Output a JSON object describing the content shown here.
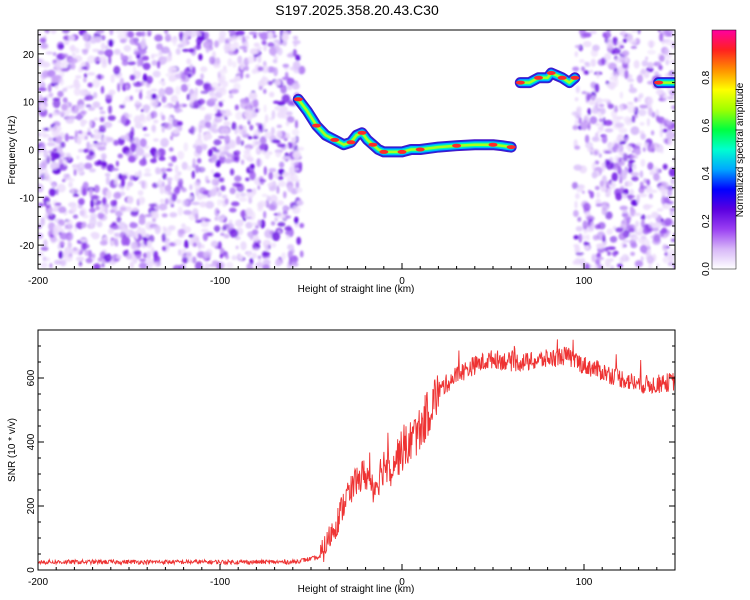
{
  "title": "S197.2025.358.20.43.C30",
  "chart_data": [
    {
      "type": "heatmap",
      "xlabel": "Height of straight line (km)",
      "ylabel": "Frequency (Hz)",
      "xlim": [
        -200,
        150
      ],
      "ylim": [
        -25,
        25
      ],
      "xticks": [
        -200,
        -100,
        0,
        100
      ],
      "yticks": [
        -20,
        -10,
        0,
        10,
        20
      ],
      "colorbar": {
        "label": "Normalized spectral amplitude",
        "range": [
          0,
          1
        ],
        "ticks": [
          "0.0",
          "0.2",
          "0.4",
          "0.6",
          "0.8"
        ],
        "colors": [
          "#ffffff",
          "#d8b8f8",
          "#9a3ff2",
          "#5a00e0",
          "#0000ff",
          "#00a8ff",
          "#00ffd0",
          "#00ff40",
          "#a0ff00",
          "#ffff00",
          "#ff9000",
          "#ff2020",
          "#ff00a0"
        ]
      },
      "noise_regions": [
        [
          -200,
          -55
        ],
        [
          95,
          150
        ]
      ],
      "trace": {
        "x": [
          -57,
          -52,
          -47,
          -42,
          -37,
          -32,
          -28,
          -25,
          -22,
          -19,
          -16,
          -13,
          -10,
          -5,
          0,
          5,
          10,
          20,
          30,
          40,
          50,
          55,
          60
        ],
        "y": [
          10.5,
          8,
          5,
          3,
          2,
          1,
          1.5,
          3,
          3.5,
          2,
          1,
          0,
          -0.5,
          -0.5,
          -0.5,
          0,
          0,
          0.5,
          0.8,
          1,
          1,
          0.8,
          0.5
        ]
      },
      "trace2": {
        "x": [
          65,
          70,
          75,
          80,
          82,
          85,
          88,
          92,
          95
        ],
        "y": [
          14,
          14,
          15,
          15,
          16,
          15.5,
          15,
          14,
          15
        ]
      },
      "trace3": {
        "x": [
          141,
          150
        ],
        "y": [
          14,
          14
        ]
      }
    },
    {
      "type": "line",
      "xlabel": "Height of straight line (km)",
      "ylabel": "SNR (10 * v/v)",
      "xlim": [
        -200,
        150
      ],
      "ylim": [
        0,
        750
      ],
      "xticks": [
        -200,
        -100,
        0,
        100
      ],
      "yticks": [
        0,
        200,
        400,
        600
      ],
      "color": "#ee3333",
      "envelope": {
        "x": [
          -200,
          -60,
          -45,
          -40,
          -35,
          -30,
          -25,
          -20,
          -15,
          -10,
          -5,
          0,
          10,
          20,
          30,
          40,
          50,
          60,
          70,
          80,
          90,
          100,
          110,
          120,
          130,
          140,
          150
        ],
        "y": [
          25,
          25,
          40,
          100,
          160,
          240,
          280,
          300,
          260,
          330,
          340,
          370,
          440,
          560,
          610,
          640,
          660,
          650,
          650,
          660,
          670,
          640,
          620,
          600,
          580,
          580,
          590
        ]
      }
    }
  ]
}
